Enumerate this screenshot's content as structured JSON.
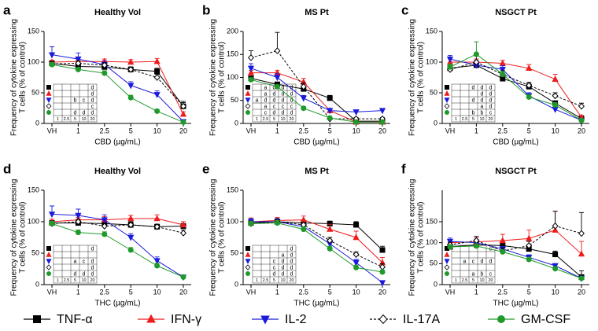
{
  "chart_data": [
    {
      "type": "line",
      "label": "a",
      "title": "Healthy Vol",
      "xlabel": "CBD (µg/mL)",
      "ylabel": [
        "Frequency of cytokine expressing",
        "T cells (% of control)"
      ],
      "categories": [
        "VH",
        "1",
        "2.5",
        "5",
        "10",
        "20"
      ],
      "ylim": [
        0,
        150
      ],
      "yticks": [
        0,
        50,
        100,
        150
      ],
      "series": [
        {
          "name": "TNF-α",
          "color": "#000000",
          "marker": "square",
          "dashed": false,
          "values": [
            98,
            93,
            92,
            88,
            85,
            28
          ],
          "errors": [
            4,
            4,
            4,
            4,
            5,
            8
          ]
        },
        {
          "name": "IFN-γ",
          "color": "#ee1c1c",
          "marker": "triangle-up",
          "dashed": false,
          "values": [
            100,
            101,
            101,
            100,
            101,
            15
          ],
          "errors": [
            3,
            3,
            4,
            4,
            5,
            4
          ]
        },
        {
          "name": "IL-2",
          "color": "#1a1adb",
          "marker": "triangle-down",
          "dashed": false,
          "values": [
            112,
            105,
            96,
            62,
            47,
            3
          ],
          "errors": [
            13,
            10,
            6,
            6,
            6,
            2
          ]
        },
        {
          "name": "IL-17A",
          "color": "#000000",
          "marker": "diamond",
          "dashed": true,
          "values": [
            97,
            98,
            95,
            88,
            75,
            28
          ],
          "errors": [
            4,
            4,
            4,
            4,
            5,
            6
          ]
        },
        {
          "name": "GM-CSF",
          "color": "#1f9a2a",
          "marker": "circle",
          "dashed": false,
          "values": [
            96,
            88,
            82,
            42,
            20,
            2
          ],
          "errors": [
            3,
            3,
            4,
            4,
            3,
            2
          ]
        }
      ],
      "inset": [
        [
          null,
          null,
          null,
          null,
          "d"
        ],
        [
          null,
          null,
          null,
          null,
          "d"
        ],
        [
          null,
          null,
          "b",
          "c",
          "d"
        ],
        [
          null,
          null,
          null,
          null,
          "c"
        ],
        [
          null,
          null,
          "d",
          "d",
          "d"
        ]
      ]
    },
    {
      "type": "line",
      "label": "b",
      "title": "MS Pt",
      "xlabel": "CBD (µg/mL)",
      "ylabel": [
        "Frequency of cytokine expressing",
        "T cells (% of control)"
      ],
      "categories": [
        "VH",
        "1",
        "2.5",
        "5",
        "10",
        "20"
      ],
      "ylim": [
        0,
        200
      ],
      "yticks": [
        0,
        50,
        100,
        150,
        200
      ],
      "series": [
        {
          "name": "TNF-α",
          "color": "#000000",
          "marker": "square",
          "dashed": false,
          "values": [
            98,
            85,
            75,
            55,
            5,
            5
          ],
          "errors": [
            4,
            5,
            6,
            6,
            2,
            2
          ]
        },
        {
          "name": "IFN-γ",
          "color": "#ee1c1c",
          "marker": "triangle-up",
          "dashed": false,
          "values": [
            110,
            110,
            90,
            28,
            3,
            3
          ],
          "errors": [
            5,
            5,
            8,
            4,
            2,
            2
          ]
        },
        {
          "name": "IL-2",
          "color": "#1a1adb",
          "marker": "triangle-down",
          "dashed": false,
          "values": [
            120,
            100,
            55,
            28,
            25,
            28
          ],
          "errors": [
            10,
            8,
            6,
            4,
            3,
            3
          ]
        },
        {
          "name": "IL-17A",
          "color": "#000000",
          "marker": "diamond",
          "dashed": true,
          "values": [
            143,
            158,
            80,
            10,
            10,
            10
          ],
          "errors": [
            15,
            40,
            8,
            3,
            3,
            3
          ]
        },
        {
          "name": "GM-CSF",
          "color": "#1f9a2a",
          "marker": "circle",
          "dashed": false,
          "values": [
            95,
            80,
            33,
            12,
            3,
            3
          ],
          "errors": [
            4,
            4,
            4,
            3,
            2,
            2
          ]
        }
      ],
      "inset": [
        [
          null,
          "a",
          "d",
          "d",
          "d"
        ],
        [
          null,
          "a",
          "d",
          "d",
          "d"
        ],
        [
          "a",
          "d",
          "d",
          "d",
          "d"
        ],
        [
          null,
          "a",
          "c",
          "c",
          "c"
        ],
        [
          null,
          "c",
          "d",
          "d",
          "d"
        ]
      ]
    },
    {
      "type": "line",
      "label": "c",
      "title": "NSGCT Pt",
      "xlabel": "CBD (µg/mL)",
      "ylabel": [
        "Frequency of cytokine expressing",
        "T cells (% of control)"
      ],
      "categories": [
        "VH",
        "1",
        "2.5",
        "5",
        "10",
        "20"
      ],
      "ylim": [
        0,
        150
      ],
      "yticks": [
        0,
        50,
        100,
        150
      ],
      "series": [
        {
          "name": "TNF-α",
          "color": "#000000",
          "marker": "square",
          "dashed": false,
          "values": [
            90,
            95,
            73,
            60,
            33,
            8
          ],
          "errors": [
            5,
            5,
            4,
            5,
            4,
            3
          ]
        },
        {
          "name": "IFN-γ",
          "color": "#ee1c1c",
          "marker": "triangle-up",
          "dashed": false,
          "values": [
            100,
            100,
            98,
            90,
            72,
            10
          ],
          "errors": [
            5,
            5,
            5,
            6,
            8,
            3
          ]
        },
        {
          "name": "IL-2",
          "color": "#1a1adb",
          "marker": "triangle-down",
          "dashed": false,
          "values": [
            105,
            95,
            88,
            45,
            23,
            5
          ],
          "errors": [
            6,
            8,
            6,
            5,
            3,
            2
          ]
        },
        {
          "name": "IL-17A",
          "color": "#000000",
          "marker": "diamond",
          "dashed": true,
          "values": [
            88,
            100,
            80,
            62,
            45,
            28
          ],
          "errors": [
            5,
            10,
            6,
            5,
            5,
            5
          ]
        },
        {
          "name": "GM-CSF",
          "color": "#1f9a2a",
          "marker": "circle",
          "dashed": false,
          "values": [
            92,
            113,
            80,
            43,
            30,
            5
          ],
          "errors": [
            5,
            20,
            5,
            4,
            4,
            2
          ]
        }
      ],
      "inset": [
        [
          null,
          null,
          "d",
          "d",
          "d"
        ],
        [
          null,
          null,
          null,
          "d",
          "d"
        ],
        [
          null,
          null,
          "d",
          "d",
          "d"
        ],
        [
          null,
          null,
          null,
          "a",
          "d"
        ],
        [
          null,
          null,
          "b",
          "b",
          "c"
        ]
      ]
    },
    {
      "type": "line",
      "label": "d",
      "title": "Healthy Vol",
      "xlabel": "THC (µg/mL)",
      "ylabel": [
        "Frequency of cytokine expressing",
        "T cells (% of control)"
      ],
      "categories": [
        "VH",
        "1",
        "2.5",
        "5",
        "10",
        "20"
      ],
      "ylim": [
        0,
        150
      ],
      "yticks": [
        0,
        50,
        100,
        150
      ],
      "series": [
        {
          "name": "TNF-α",
          "color": "#000000",
          "marker": "square",
          "dashed": false,
          "values": [
            98,
            98,
            97,
            95,
            92,
            93
          ],
          "errors": [
            4,
            4,
            4,
            4,
            4,
            4
          ]
        },
        {
          "name": "IFN-γ",
          "color": "#ee1c1c",
          "marker": "triangle-up",
          "dashed": false,
          "values": [
            100,
            103,
            103,
            105,
            105,
            95
          ],
          "errors": [
            4,
            4,
            5,
            5,
            6,
            5
          ]
        },
        {
          "name": "IL-2",
          "color": "#1a1adb",
          "marker": "triangle-down",
          "dashed": false,
          "values": [
            112,
            110,
            103,
            75,
            38,
            12
          ],
          "errors": [
            13,
            10,
            8,
            6,
            6,
            3
          ]
        },
        {
          "name": "IL-17A",
          "color": "#000000",
          "marker": "diamond",
          "dashed": true,
          "values": [
            97,
            100,
            93,
            95,
            92,
            82
          ],
          "errors": [
            4,
            4,
            4,
            5,
            4,
            5
          ]
        },
        {
          "name": "GM-CSF",
          "color": "#1f9a2a",
          "marker": "circle",
          "dashed": false,
          "values": [
            97,
            83,
            80,
            55,
            30,
            12
          ],
          "errors": [
            4,
            4,
            4,
            4,
            4,
            3
          ]
        }
      ],
      "inset": [
        [
          null,
          null,
          null,
          null,
          "d"
        ],
        [
          null,
          null,
          null,
          null,
          null
        ],
        [
          null,
          null,
          "a",
          "c",
          "d"
        ],
        [
          null,
          null,
          null,
          null,
          "d"
        ],
        [
          null,
          null,
          "d",
          "d",
          "d"
        ]
      ]
    },
    {
      "type": "line",
      "label": "e",
      "title": "MS Pt",
      "xlabel": "THC (µg/mL)",
      "ylabel": [
        "Frequency of cytokine expressing",
        "T cells (% of control)"
      ],
      "categories": [
        "VH",
        "1",
        "2.5",
        "5",
        "10",
        "20"
      ],
      "ylim": [
        0,
        150
      ],
      "yticks": [
        0,
        50,
        100,
        150
      ],
      "series": [
        {
          "name": "TNF-α",
          "color": "#000000",
          "marker": "square",
          "dashed": false,
          "values": [
            98,
            100,
            98,
            97,
            95,
            55
          ],
          "errors": [
            4,
            4,
            4,
            4,
            5,
            6
          ]
        },
        {
          "name": "IFN-γ",
          "color": "#ee1c1c",
          "marker": "triangle-up",
          "dashed": false,
          "values": [
            100,
            102,
            103,
            88,
            75,
            35
          ],
          "errors": [
            6,
            5,
            6,
            8,
            10,
            8
          ]
        },
        {
          "name": "IL-2",
          "color": "#1a1adb",
          "marker": "triangle-down",
          "dashed": false,
          "values": [
            100,
            100,
            92,
            65,
            35,
            3
          ],
          "errors": [
            5,
            5,
            5,
            6,
            5,
            2
          ]
        },
        {
          "name": "IL-17A",
          "color": "#000000",
          "marker": "diamond",
          "dashed": true,
          "values": [
            97,
            100,
            95,
            70,
            48,
            28
          ],
          "errors": [
            4,
            4,
            4,
            5,
            4,
            5
          ]
        },
        {
          "name": "GM-CSF",
          "color": "#1f9a2a",
          "marker": "circle",
          "dashed": false,
          "values": [
            97,
            98,
            88,
            57,
            27,
            20
          ],
          "errors": [
            4,
            4,
            4,
            4,
            4,
            3
          ]
        }
      ],
      "inset": [
        [
          null,
          null,
          null,
          null,
          "d"
        ],
        [
          null,
          null,
          null,
          "a",
          "d"
        ],
        [
          null,
          null,
          "c",
          "d",
          "d"
        ],
        [
          null,
          null,
          "c",
          "d",
          "d"
        ],
        [
          null,
          null,
          "d",
          "d",
          "d"
        ]
      ]
    },
    {
      "type": "line",
      "label": "f",
      "title": "NSGCT Pt",
      "xlabel": "THC (µg/mL)",
      "ylabel": [
        "Frequency of cytokine expressing",
        "T cells (% of control)"
      ],
      "categories": [
        "VH",
        "1",
        "2.5",
        "5",
        "10",
        "20"
      ],
      "ylim": [
        0,
        225
      ],
      "yticks": [
        0,
        50,
        100,
        150
      ],
      "series": [
        {
          "name": "TNF-α",
          "color": "#000000",
          "marker": "square",
          "dashed": false,
          "values": [
            90,
            95,
            93,
            85,
            72,
            18
          ],
          "errors": [
            6,
            6,
            5,
            6,
            8,
            15
          ]
        },
        {
          "name": "IFN-γ",
          "color": "#ee1c1c",
          "marker": "triangle-up",
          "dashed": false,
          "values": [
            100,
            102,
            105,
            110,
            130,
            73
          ],
          "errors": [
            8,
            10,
            15,
            20,
            45,
            30
          ]
        },
        {
          "name": "IL-2",
          "color": "#1a1adb",
          "marker": "triangle-down",
          "dashed": false,
          "values": [
            103,
            100,
            85,
            65,
            45,
            15
          ],
          "errors": [
            8,
            8,
            6,
            6,
            5,
            3
          ]
        },
        {
          "name": "IL-17A",
          "color": "#000000",
          "marker": "diamond",
          "dashed": true,
          "values": [
            95,
            105,
            80,
            93,
            140,
            122
          ],
          "errors": [
            6,
            10,
            8,
            10,
            35,
            50
          ]
        },
        {
          "name": "GM-CSF",
          "color": "#1f9a2a",
          "marker": "circle",
          "dashed": false,
          "values": [
            90,
            92,
            78,
            60,
            38,
            15
          ],
          "errors": [
            5,
            5,
            5,
            5,
            5,
            3
          ]
        }
      ],
      "inset": [
        [
          null,
          null,
          null,
          null,
          "c"
        ],
        [
          null,
          null,
          null,
          null,
          null
        ],
        [
          null,
          "a",
          "c",
          "d",
          "d"
        ],
        [
          null,
          null,
          null,
          null,
          null
        ],
        [
          null,
          null,
          "a",
          "b",
          "c"
        ]
      ]
    }
  ]
}
